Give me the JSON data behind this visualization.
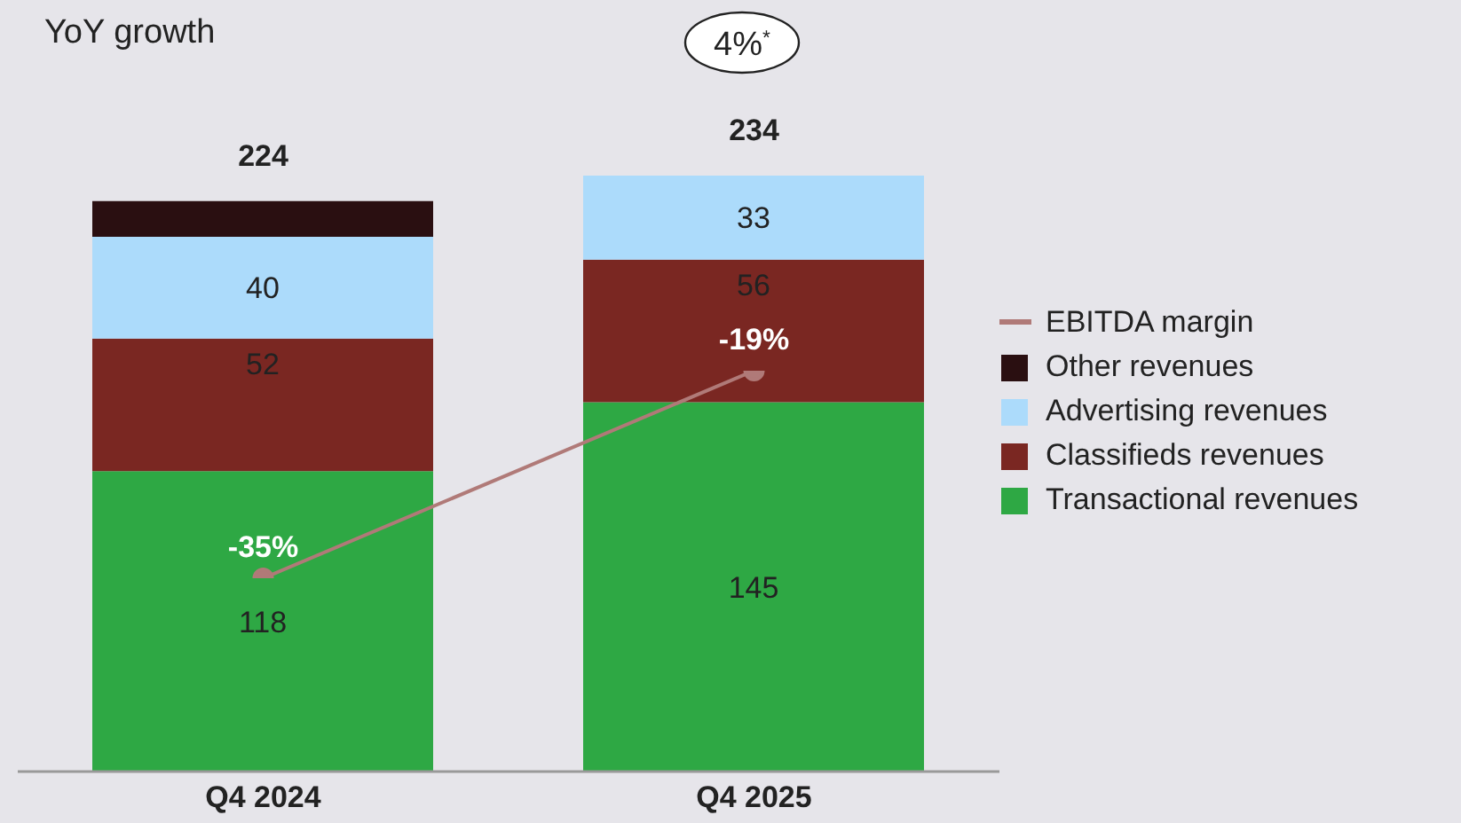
{
  "chart_data": {
    "type": "bar",
    "title": "YoY growth",
    "stacked": true,
    "categories": [
      "Q4 2024",
      "Q4 2025"
    ],
    "series": [
      {
        "name": "Transactional revenues",
        "color": "#2ea844",
        "values": [
          118,
          145
        ],
        "value_labels": [
          "118",
          "145"
        ]
      },
      {
        "name": "Classifieds revenues",
        "color": "#7a2722",
        "values": [
          52,
          56
        ],
        "value_labels": [
          "52",
          "56"
        ]
      },
      {
        "name": "Advertising revenues",
        "color": "#acdbfb",
        "values": [
          40,
          33
        ],
        "value_labels": [
          "40",
          "33"
        ]
      },
      {
        "name": "Other revenues",
        "color": "#2a0f11",
        "values": [
          14,
          0
        ],
        "value_labels": [
          null,
          null
        ]
      },
      {
        "name": "EBITDA margin",
        "type": "line",
        "axis": "y2",
        "color": "#b07a78",
        "values": [
          -35,
          -19
        ],
        "value_labels": [
          "-35%",
          "-19%"
        ]
      }
    ],
    "totals": [
      "224",
      "234"
    ],
    "annotations": [
      "4%$^{*}$"
    ],
    "tick_labels": "x",
    "legend": "right",
    "marker": "circle"
  }
}
